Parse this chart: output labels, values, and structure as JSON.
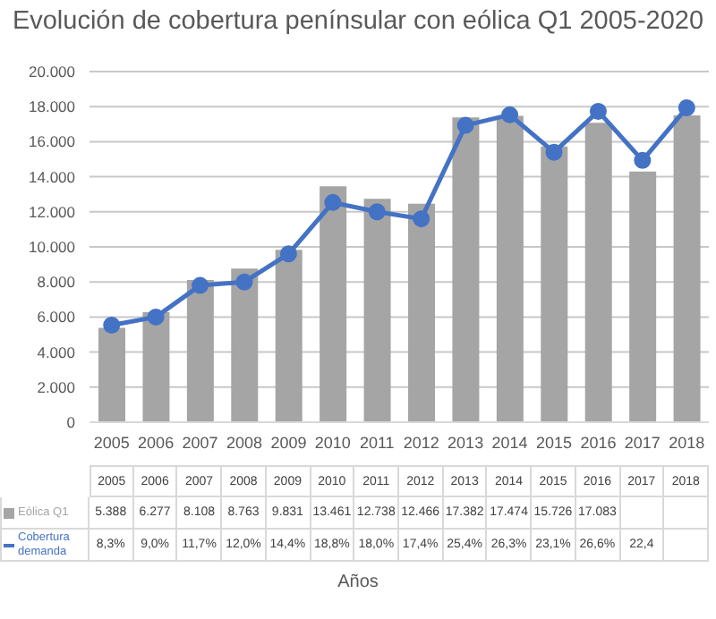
{
  "chart_data": {
    "type": "bar",
    "title": "Evolución de cobertura penínsular con eólica Q1 2005-2020",
    "annotations": [
      "Años"
    ],
    "categories": [
      "2005",
      "2006",
      "2007",
      "2008",
      "2009",
      "2010",
      "2011",
      "2012",
      "2013",
      "2014",
      "2015",
      "2016",
      "2017",
      "2018"
    ],
    "series": [
      {
        "name": "Eólica Q1",
        "color": "#a5a5a5",
        "values": [
          5388,
          6277,
          8108,
          8763,
          9831,
          13461,
          12738,
          12466,
          17382,
          17474,
          15726,
          17083,
          14300,
          17500
        ],
        "value_labels": [
          "5.388",
          "6.277",
          "8.108",
          "8.763",
          "9.831",
          "13.461",
          "12.738",
          "12.466",
          "17.382",
          "17.474",
          "15.726",
          "17.083",
          null,
          null
        ]
      },
      {
        "name": "Cobertura demanda",
        "type": "line",
        "axis": "y2",
        "color": "#4472c4",
        "marker": "circle",
        "values": [
          8.3,
          9.0,
          11.7,
          12.0,
          14.4,
          18.8,
          18.0,
          17.4,
          25.4,
          26.3,
          23.1,
          26.6,
          22.4,
          26.9
        ],
        "value_labels": [
          "8,3%",
          "9,0%",
          "11,7%",
          "12,0%",
          "14,4%",
          "18,8%",
          "18,0%",
          "17,4%",
          "25,4%",
          "26,3%",
          "23,1%",
          "26,6%",
          "22,4",
          null
        ]
      }
    ],
    "ylim": [
      0,
      20000
    ],
    "yticks": [
      0,
      {
        "value": 2000,
        "label": "2.000"
      },
      {
        "value": 4000,
        "label": "4.000"
      },
      {
        "value": 6000,
        "label": "6.000"
      },
      {
        "value": 8000,
        "label": "8.000"
      },
      {
        "value": 10000,
        "label": "10.000"
      },
      {
        "value": 12000,
        "label": "12.000"
      },
      {
        "value": 14000,
        "label": "14.000"
      },
      {
        "value": 16000,
        "label": "16.000"
      },
      {
        "value": 18000,
        "label": "18.000"
      },
      {
        "value": 20000,
        "label": "20.000"
      }
    ],
    "y2lim": [
      0,
      30
    ],
    "grid": "y",
    "legend": "bottom left",
    "tick_labels": "xy"
  }
}
